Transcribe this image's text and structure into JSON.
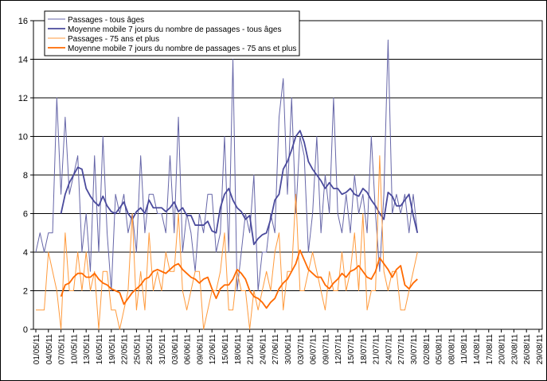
{
  "chart_data": {
    "type": "line",
    "categories": [
      "01/05/11",
      null,
      null,
      "04/05/11",
      null,
      null,
      "07/05/11",
      null,
      null,
      "10/05/11",
      null,
      null,
      "13/05/11",
      null,
      null,
      "16/05/11",
      null,
      null,
      "19/05/11",
      null,
      null,
      "22/05/11",
      null,
      null,
      "25/05/11",
      null,
      null,
      "28/05/11",
      null,
      null,
      "31/05/11",
      null,
      null,
      "03/06/11",
      null,
      null,
      "06/06/11",
      null,
      null,
      "09/06/11",
      null,
      null,
      "12/06/11",
      null,
      null,
      "15/06/11",
      null,
      null,
      "18/06/11",
      null,
      null,
      "21/06/11",
      null,
      null,
      "24/06/11",
      null,
      null,
      "27/06/11",
      null,
      null,
      "30/06/11",
      null,
      null,
      "03/07/11",
      null,
      null,
      "06/07/11",
      null,
      null,
      "09/07/11",
      null,
      null,
      "12/07/11",
      null,
      null,
      "15/07/11",
      null,
      null,
      "18/07/11",
      null,
      null,
      "21/07/11",
      null,
      null,
      "24/07/11",
      null,
      null,
      "27/07/11",
      null,
      null,
      "30/07/11",
      null,
      null,
      "02/08/11",
      null,
      null,
      "05/08/11",
      null,
      null,
      "08/08/11",
      null,
      null,
      "11/08/11",
      null,
      null,
      "14/08/11",
      null,
      null,
      "17/08/11",
      null,
      null,
      "20/08/11",
      null,
      null,
      "23/08/11",
      null,
      null,
      "26/08/11",
      null,
      null,
      "29/08/11"
    ],
    "series": [
      {
        "name": "Passages - tous âges",
        "color": "#6666a8",
        "width": 1,
        "values": [
          4,
          5,
          4,
          5,
          5,
          12,
          7,
          11,
          7,
          8,
          9,
          4,
          6,
          3,
          9,
          4,
          10,
          5,
          2,
          7,
          6,
          7,
          5,
          6,
          4,
          9,
          5,
          7,
          7,
          6,
          6,
          5,
          9,
          5,
          11,
          4,
          6,
          5,
          3,
          6,
          5,
          7,
          7,
          4,
          5,
          10,
          4,
          14,
          2,
          4,
          6,
          5,
          8,
          2,
          4,
          4,
          6,
          5,
          11,
          13,
          7,
          12,
          6,
          10,
          9,
          4,
          6,
          10,
          5,
          8,
          6,
          12,
          6,
          5,
          7,
          5,
          8,
          6,
          7,
          5,
          10,
          6,
          3,
          7,
          15,
          6,
          7,
          6,
          7,
          5,
          7,
          5,
          null,
          null,
          null,
          null,
          null,
          null,
          null,
          null,
          null,
          null,
          null,
          null,
          null,
          null,
          null,
          null,
          null,
          null,
          null,
          null,
          null,
          null,
          null,
          null,
          null,
          null,
          null,
          null,
          null
        ]
      },
      {
        "name": "Moyenne mobile 7 jours du nombre de passages - tous âges",
        "color": "#4a4a9c",
        "width": 1.8,
        "values": [
          null,
          null,
          null,
          null,
          null,
          null,
          6,
          7,
          7.6,
          8,
          8.4,
          8.3,
          7.3,
          6.9,
          6.6,
          6.4,
          6.9,
          6.4,
          6.1,
          6.0,
          6.3,
          6.6,
          6.0,
          5.7,
          6.1,
          6.3,
          6.0,
          6.7,
          6.3,
          6.3,
          6.3,
          6.1,
          6.3,
          6.6,
          6.1,
          6.3,
          5.9,
          5.9,
          5.4,
          5.4,
          5.4,
          5.6,
          5.1,
          5.0,
          6.3,
          7.0,
          7.3,
          6.7,
          6.3,
          6.1,
          5.7,
          5.9,
          4.4,
          4.7,
          4.9,
          5.0,
          5.7,
          6.7,
          7.0,
          8.3,
          8.7,
          9.3,
          10.0,
          10.3,
          9.7,
          8.7,
          8.3,
          8.0,
          7.7,
          7.3,
          7.6,
          7.3,
          7.3,
          7.0,
          7.1,
          7.3,
          7.0,
          6.9,
          7.3,
          7.1,
          6.7,
          6.4,
          6.0,
          5.7,
          7.1,
          6.9,
          6.4,
          6.4,
          6.7,
          7.0,
          5.9,
          5.0,
          null,
          null,
          null,
          null,
          null,
          null,
          null,
          null,
          null,
          null,
          null,
          null,
          null,
          null,
          null,
          null,
          null,
          null,
          null,
          null,
          null,
          null,
          null,
          null,
          null,
          null,
          null,
          null,
          null
        ]
      },
      {
        "name": "Passages - 75 ans et plus",
        "color": "#ff9a3c",
        "width": 1,
        "values": [
          1,
          1,
          1,
          4,
          3,
          2,
          0,
          5,
          2,
          2,
          4,
          2,
          4,
          2,
          3,
          0,
          3,
          3,
          1,
          1,
          0,
          1,
          2,
          6,
          1,
          3,
          1,
          5,
          2,
          3,
          2,
          4,
          3,
          3,
          6,
          2,
          1,
          2,
          3,
          3,
          0,
          1,
          2,
          2,
          3,
          5,
          1,
          1,
          3,
          2,
          2,
          0,
          2,
          1,
          2,
          3,
          2,
          4,
          5,
          1,
          3,
          3,
          7,
          2,
          2,
          3,
          4,
          3,
          2,
          1,
          3,
          2,
          2,
          4,
          2,
          3,
          5,
          2,
          6,
          1,
          2,
          2,
          9,
          3,
          2,
          3,
          3,
          1,
          1,
          2,
          3,
          4,
          null,
          null,
          null,
          null,
          null,
          null,
          null,
          null,
          null,
          null,
          null,
          null,
          null,
          null,
          null,
          null,
          null,
          null,
          null,
          null,
          null,
          null,
          null,
          null,
          null,
          null,
          null,
          null,
          null
        ]
      },
      {
        "name": "Moyenne mobile 7 jours du nombre de passages - 75 ans et plus",
        "color": "#ff6a00",
        "width": 1.8,
        "values": [
          null,
          null,
          null,
          null,
          null,
          null,
          1.7,
          2.3,
          2.4,
          2.7,
          2.9,
          2.9,
          2.7,
          2.7,
          2.9,
          2.6,
          2.4,
          2.3,
          2.1,
          2.0,
          1.9,
          1.3,
          1.6,
          1.9,
          2.1,
          2.3,
          2.6,
          2.7,
          3.0,
          3.1,
          3.0,
          2.9,
          3.1,
          3.3,
          3.4,
          3.1,
          2.9,
          2.7,
          2.6,
          2.4,
          2.6,
          2.7,
          2.1,
          1.6,
          2.1,
          2.3,
          2.3,
          2.6,
          3.1,
          2.9,
          2.6,
          2.0,
          1.7,
          1.6,
          1.4,
          1.1,
          1.4,
          1.6,
          2.1,
          2.4,
          2.6,
          3.0,
          3.4,
          4.1,
          3.6,
          3.1,
          2.9,
          2.7,
          2.7,
          2.3,
          2.1,
          2.4,
          2.6,
          2.9,
          2.7,
          3.0,
          3.1,
          3.3,
          3.0,
          2.7,
          2.6,
          3.0,
          3.7,
          3.4,
          3.1,
          2.7,
          3.1,
          3.3,
          2.3,
          2.1,
          2.4,
          2.6,
          null,
          null,
          null,
          null,
          null,
          null,
          null,
          null,
          null,
          null,
          null,
          null,
          null,
          null,
          null,
          null,
          null,
          null,
          null,
          null,
          null,
          null,
          null,
          null,
          null,
          null,
          null,
          null,
          null
        ]
      }
    ],
    "ylim": [
      0,
      16
    ],
    "yticks": [
      0,
      2,
      4,
      6,
      8,
      10,
      12,
      14,
      16
    ],
    "grid": true,
    "legend": "upper left"
  }
}
